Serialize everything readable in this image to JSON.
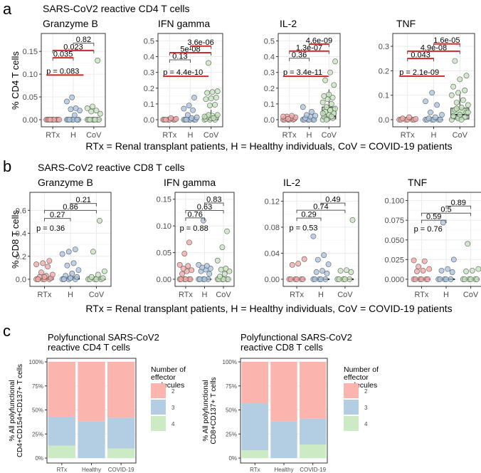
{
  "panel_labels": {
    "a": "a",
    "b": "b",
    "c": "c"
  },
  "row_a": {
    "title": "SARS-CoV2 reactive CD4 T cells",
    "ylabel": "% CD4 T cells",
    "legend_note": "RTx = Renal transplant patients, H = Healthy individuals, CoV = COVID-19 patients"
  },
  "row_b": {
    "title": "SARS-CoV2 reactive CD8 T cells",
    "ylabel": "% CD8 T cells",
    "legend_note": "RTx = Renal transplant patients, H = Healthy individuals, CoV = COVID-19 patients"
  },
  "row_c": {
    "legend_title": [
      "Number of",
      "effector",
      "molecules"
    ],
    "legend_items": [
      "2",
      "3",
      "4"
    ]
  },
  "colors": {
    "RTx": "#f4a9a8",
    "H": "#aac6e2",
    "CoV": "#c4e5bd",
    "sig_line": "#cc2a2a",
    "ns_line": "#555555",
    "bar_2": "#fbb4ae",
    "bar_3": "#b3cde3",
    "bar_4": "#ccebc5"
  },
  "chart_data": [
    {
      "type": "scatter",
      "group": "a",
      "title": "Granzyme B",
      "categories": [
        "RTx",
        "H",
        "CoV"
      ],
      "ylim": [
        0,
        0.18
      ],
      "yticks": [
        0,
        0.05,
        0.1,
        0.15
      ],
      "ytick_labels": [
        "0.00",
        "0.05",
        "0.10",
        "0.15"
      ],
      "points": {
        "RTx": [
          0,
          0,
          0,
          0,
          0,
          0,
          0,
          0,
          0,
          0
        ],
        "H": [
          0,
          0,
          0,
          0,
          0,
          0,
          0,
          0.01,
          0.02,
          0.023,
          0.025,
          0.04,
          0.049,
          0
        ],
        "CoV": [
          0,
          0,
          0,
          0,
          0,
          0,
          0,
          0,
          0.013,
          0.018,
          0.02,
          0.025,
          0.029,
          0.13
        ]
      },
      "boxes": {
        "RTx": [
          0,
          0,
          0
        ],
        "H": [
          0,
          0,
          0
        ],
        "CoV": [
          0,
          0,
          0
        ]
      },
      "kruskal": {
        "label": "p = 0.083",
        "y": 0.098,
        "sig": true
      },
      "comparisons": [
        {
          "from": "RTx",
          "to": "H",
          "label": "0.035",
          "y": 0.136,
          "sig": true
        },
        {
          "from": "RTx",
          "to": "CoV",
          "label": "0.023",
          "y": 0.152,
          "sig": true
        },
        {
          "from": "H",
          "to": "CoV",
          "label": "0.82",
          "y": 0.168,
          "sig": false
        }
      ]
    },
    {
      "type": "scatter",
      "group": "a",
      "title": "IFN gamma",
      "categories": [
        "RTx",
        "H",
        "CoV"
      ],
      "ylim": [
        0,
        0.52
      ],
      "yticks": [
        0,
        0.1,
        0.2,
        0.3,
        0.4,
        0.5
      ],
      "ytick_labels": [
        "0.0",
        "0.1",
        "0.2",
        "0.3",
        "0.4",
        "0.5"
      ],
      "points": {
        "RTx": [
          0,
          0,
          0,
          0,
          0,
          0,
          0,
          0.01,
          0.005
        ],
        "H": [
          0,
          0,
          0,
          0,
          0,
          0,
          0,
          0.01,
          0.015,
          0.03,
          0.06,
          0.07,
          0.09,
          0.14
        ],
        "CoV": [
          0,
          0,
          0,
          0.005,
          0.01,
          0.015,
          0.02,
          0.025,
          0.03,
          0.03,
          0.01,
          0.02,
          0.09,
          0.095,
          0.13,
          0.135,
          0.14,
          0.17,
          0.175,
          0.18,
          0.36
        ]
      },
      "boxes": {
        "RTx": [
          0,
          0,
          0
        ],
        "H": [
          0,
          0,
          0
        ],
        "CoV": [
          0,
          0.01,
          0.025
        ]
      },
      "kruskal": {
        "label": "p = 4.4e-10",
        "y": 0.275,
        "sig": true
      },
      "comparisons": [
        {
          "from": "RTx",
          "to": "H",
          "label": "0.13",
          "y": 0.38,
          "sig": false
        },
        {
          "from": "RTx",
          "to": "CoV",
          "label": "5e-08",
          "y": 0.425,
          "sig": true
        },
        {
          "from": "H",
          "to": "CoV",
          "label": "3.6e-06",
          "y": 0.467,
          "sig": true
        }
      ]
    },
    {
      "type": "scatter",
      "group": "a",
      "title": "IL-2",
      "categories": [
        "RTx",
        "H",
        "CoV"
      ],
      "ylim": [
        0,
        0.52
      ],
      "yticks": [
        0,
        0.1,
        0.2,
        0.3,
        0.4,
        0.5
      ],
      "ytick_labels": [
        "0.0",
        "0.1",
        "0.2",
        "0.3",
        "0.4",
        "0.5"
      ],
      "points": {
        "RTx": [
          0,
          0,
          0,
          0,
          0,
          0.005,
          0.01,
          0.01,
          0.015,
          0.02,
          0.025,
          0.02,
          0.005
        ],
        "H": [
          0,
          0,
          0,
          0,
          0,
          0,
          0.01,
          0.02,
          0.025,
          0.03,
          0.05,
          0.08
        ],
        "CoV": [
          0,
          0.005,
          0.01,
          0.02,
          0.03,
          0.04,
          0.05,
          0.06,
          0.07,
          0.08,
          0.1,
          0.11,
          0.13,
          0.14,
          0.15,
          0.16,
          0.22,
          0.25,
          0.3,
          0.37,
          0.0,
          0.02,
          0.04
        ]
      },
      "boxes": {
        "RTx": [
          0,
          0,
          0
        ],
        "H": [
          0,
          0,
          0
        ],
        "CoV": [
          0.005,
          0.02,
          0.08
        ]
      },
      "kruskal": {
        "label": "p = 3.4e-11",
        "y": 0.275,
        "sig": true
      },
      "comparisons": [
        {
          "from": "RTx",
          "to": "H",
          "label": "0.36",
          "y": 0.39,
          "sig": false
        },
        {
          "from": "RTx",
          "to": "CoV",
          "label": "1.3e-07",
          "y": 0.435,
          "sig": true
        },
        {
          "from": "H",
          "to": "CoV",
          "label": "4.6e-09",
          "y": 0.48,
          "sig": true
        }
      ]
    },
    {
      "type": "scatter",
      "group": "a",
      "title": "TNF",
      "categories": [
        "RTx",
        "H",
        "CoV"
      ],
      "ylim": [
        0,
        0.335
      ],
      "yticks": [
        0,
        0.1,
        0.2,
        0.3
      ],
      "ytick_labels": [
        "0.0",
        "0.1",
        "0.2",
        "0.3"
      ],
      "points": {
        "RTx": [
          0,
          0,
          0,
          0,
          0,
          0,
          0.005,
          0.01,
          0.003
        ],
        "H": [
          0,
          0,
          0,
          0,
          0,
          0,
          0.005,
          0.01,
          0.02,
          0.03,
          0.06,
          0.075,
          0.11
        ],
        "CoV": [
          0,
          0.005,
          0.01,
          0.015,
          0.02,
          0.03,
          0.04,
          0.05,
          0.06,
          0.07,
          0.08,
          0.1,
          0.11,
          0.12,
          0.135,
          0.165,
          0.18,
          0.24,
          0.0,
          0.03,
          0.045
        ]
      },
      "boxes": {
        "RTx": [
          0,
          0,
          0
        ],
        "H": [
          0,
          0,
          0
        ],
        "CoV": [
          0.003,
          0.02,
          0.047
        ]
      },
      "kruskal": {
        "label": "p = 2.1e-09",
        "y": 0.178,
        "sig": true
      },
      "comparisons": [
        {
          "from": "RTx",
          "to": "H",
          "label": "0.043",
          "y": 0.25,
          "sig": true
        },
        {
          "from": "RTx",
          "to": "CoV",
          "label": "4.9e-08",
          "y": 0.28,
          "sig": true
        },
        {
          "from": "H",
          "to": "CoV",
          "label": "1.6e-05",
          "y": 0.31,
          "sig": true
        }
      ]
    },
    {
      "type": "scatter",
      "group": "b",
      "title": "Granzyme B",
      "categories": [
        "RTx",
        "H",
        "CoV"
      ],
      "ylim": [
        0,
        0.72
      ],
      "yticks": [
        0,
        0.2,
        0.4,
        0.6
      ],
      "ytick_labels": [
        "0.0",
        "0.2",
        "0.4",
        "0.6"
      ],
      "points": {
        "RTx": [
          0,
          0,
          0,
          0,
          0,
          0.01,
          0.02,
          0.03,
          0.04,
          0.06,
          0.11,
          0.13,
          0.14,
          0.16,
          0.0,
          0.02
        ],
        "H": [
          0,
          0,
          0,
          0,
          0.01,
          0.02,
          0.03,
          0.05,
          0.08,
          0.12,
          0.14,
          0.22,
          0.24,
          0.26,
          0.0,
          0.01
        ],
        "CoV": [
          0,
          0,
          0,
          0,
          0,
          0.01,
          0.02,
          0.04,
          0.07,
          0.24,
          0.51
        ]
      },
      "boxes": {
        "RTx": [
          0,
          0,
          0.01
        ],
        "H": [
          0,
          0.005,
          0.02
        ],
        "CoV": [
          0,
          0,
          0
        ]
      },
      "kruskal": {
        "label": "p = 0.36",
        "y": 0.41,
        "sig": false
      },
      "comparisons": [
        {
          "from": "RTx",
          "to": "H",
          "label": "0.27",
          "y": 0.53,
          "sig": false
        },
        {
          "from": "RTx",
          "to": "CoV",
          "label": "0.86",
          "y": 0.6,
          "sig": false
        },
        {
          "from": "H",
          "to": "CoV",
          "label": "0.21",
          "y": 0.66,
          "sig": false
        }
      ]
    },
    {
      "type": "scatter",
      "group": "b",
      "title": "IFN gamma",
      "categories": [
        "RTx",
        "H",
        "CoV"
      ],
      "ylim": [
        0,
        0.155
      ],
      "yticks": [
        0,
        0.05,
        0.1,
        0.15
      ],
      "ytick_labels": [
        "0.00",
        "0.05",
        "0.10",
        "0.15"
      ],
      "points": {
        "RTx": [
          0,
          0,
          0,
          0,
          0,
          0,
          0.01,
          0.015,
          0.017,
          0.02,
          0.025,
          0.027,
          0.048,
          0.069
        ],
        "H": [
          0,
          0,
          0,
          0,
          0,
          0.01,
          0.015,
          0.018,
          0.02,
          0.022,
          0.025,
          0.027,
          0.11
        ],
        "CoV": [
          0,
          0,
          0,
          0,
          0,
          0,
          0.005,
          0.01,
          0.015,
          0.018,
          0.02,
          0.035,
          0.06,
          0.09
        ]
      },
      "boxes": {
        "RTx": [
          0,
          0,
          0
        ],
        "H": [
          0,
          0,
          0
        ],
        "CoV": [
          0,
          0,
          0
        ]
      },
      "kruskal": {
        "label": "p = 0.88",
        "y": 0.088,
        "sig": false
      },
      "comparisons": [
        {
          "from": "RTx",
          "to": "H",
          "label": "0.76",
          "y": 0.115,
          "sig": false
        },
        {
          "from": "RTx",
          "to": "CoV",
          "label": "0.63",
          "y": 0.129,
          "sig": false
        },
        {
          "from": "H",
          "to": "CoV",
          "label": "0.83",
          "y": 0.143,
          "sig": false
        }
      ]
    },
    {
      "type": "scatter",
      "group": "b",
      "title": "IL-2",
      "categories": [
        "RTx",
        "H",
        "CoV"
      ],
      "ylim": [
        0,
        0.127
      ],
      "yticks": [
        0,
        0.04,
        0.08,
        0.12
      ],
      "ytick_labels": [
        "0.00",
        "0.04",
        "0.08",
        "0.12"
      ],
      "points": {
        "RTx": [
          0,
          0,
          0,
          0,
          0,
          0,
          0.022,
          0.024,
          0.031
        ],
        "H": [
          0,
          0,
          0,
          0,
          0,
          0.009,
          0.011,
          0.013,
          0.023,
          0.03,
          0.037,
          0.066
        ],
        "CoV": [
          0,
          0,
          0,
          0,
          0,
          0.011,
          0.013,
          0.014,
          0.091
        ]
      },
      "boxes": {
        "RTx": [
          0,
          0,
          0
        ],
        "H": [
          0,
          0,
          0
        ],
        "CoV": [
          0,
          0,
          0
        ]
      },
      "kruskal": {
        "label": "p = 0.53",
        "y": 0.073,
        "sig": false
      },
      "comparisons": [
        {
          "from": "RTx",
          "to": "H",
          "label": "0.29",
          "y": 0.094,
          "sig": false
        },
        {
          "from": "RTx",
          "to": "CoV",
          "label": "0.74",
          "y": 0.106,
          "sig": false
        },
        {
          "from": "H",
          "to": "CoV",
          "label": "0.49",
          "y": 0.117,
          "sig": false
        }
      ]
    },
    {
      "type": "scatter",
      "group": "b",
      "title": "TNF",
      "categories": [
        "RTx",
        "H",
        "CoV"
      ],
      "ylim": [
        0,
        0.105
      ],
      "yticks": [
        0,
        0.025,
        0.05,
        0.075,
        0.1
      ],
      "ytick_labels": [
        "0.000",
        "0.025",
        "0.050",
        "0.075",
        "0.100"
      ],
      "points": {
        "RTx": [
          0,
          0,
          0,
          0,
          0,
          0,
          0.01,
          0.011,
          0.013,
          0.016,
          0.023,
          0.024
        ],
        "H": [
          0,
          0,
          0,
          0,
          0,
          0.009,
          0.011,
          0.013,
          0.025,
          0.072
        ],
        "CoV": [
          0,
          0,
          0,
          0,
          0,
          0,
          0.01,
          0.011,
          0.013,
          0.045
        ]
      },
      "boxes": {
        "RTx": [
          0,
          0,
          0
        ],
        "H": [
          0,
          0,
          0
        ],
        "CoV": [
          0,
          0,
          0
        ]
      },
      "kruskal": {
        "label": "p = 0.76",
        "y": 0.059,
        "sig": false
      },
      "comparisons": [
        {
          "from": "RTx",
          "to": "H",
          "label": "0.59",
          "y": 0.075,
          "sig": false
        },
        {
          "from": "RTx",
          "to": "CoV",
          "label": "0.5",
          "y": 0.084,
          "sig": false
        },
        {
          "from": "H",
          "to": "CoV",
          "label": "0.89",
          "y": 0.093,
          "sig": false
        }
      ]
    },
    {
      "type": "bar",
      "stacked": true,
      "group": "c",
      "title": [
        "Polyfunctional SARS-CoV2",
        "reactive CD4 T cells"
      ],
      "ylabel": [
        "% All polyfunctional",
        "CD4+CD154+CD137+ T cells"
      ],
      "categories": [
        "RTx",
        "Healthy",
        "COVID-19"
      ],
      "yticks": [
        "0%",
        "25%",
        "50%",
        "75%",
        "100%"
      ],
      "ylim": [
        0,
        100
      ],
      "series": [
        {
          "name": "4",
          "values": [
            13,
            0,
            10
          ]
        },
        {
          "name": "3",
          "values": [
            30,
            38,
            32
          ]
        },
        {
          "name": "2",
          "values": [
            57,
            62,
            58
          ]
        }
      ],
      "legend": {
        "title": "Number of effector molecules",
        "position": "right"
      }
    },
    {
      "type": "bar",
      "stacked": true,
      "group": "c",
      "title": [
        "Polyfunctional SARS-CoV2",
        "reactive CD8 T cells"
      ],
      "ylabel": [
        "% All polyfunctional",
        "CD8+CD137+ T cells"
      ],
      "categories": [
        "RTx",
        "Healthy",
        "COVID-19"
      ],
      "yticks": [
        "0%",
        "25%",
        "50%",
        "75%",
        "100%"
      ],
      "ylim": [
        0,
        100
      ],
      "series": [
        {
          "name": "4",
          "values": [
            8,
            0,
            14
          ]
        },
        {
          "name": "3",
          "values": [
            49,
            38,
            27
          ]
        },
        {
          "name": "2",
          "values": [
            43,
            62,
            59
          ]
        }
      ],
      "legend": {
        "title": "Number of effector molecules",
        "position": "right"
      }
    }
  ]
}
